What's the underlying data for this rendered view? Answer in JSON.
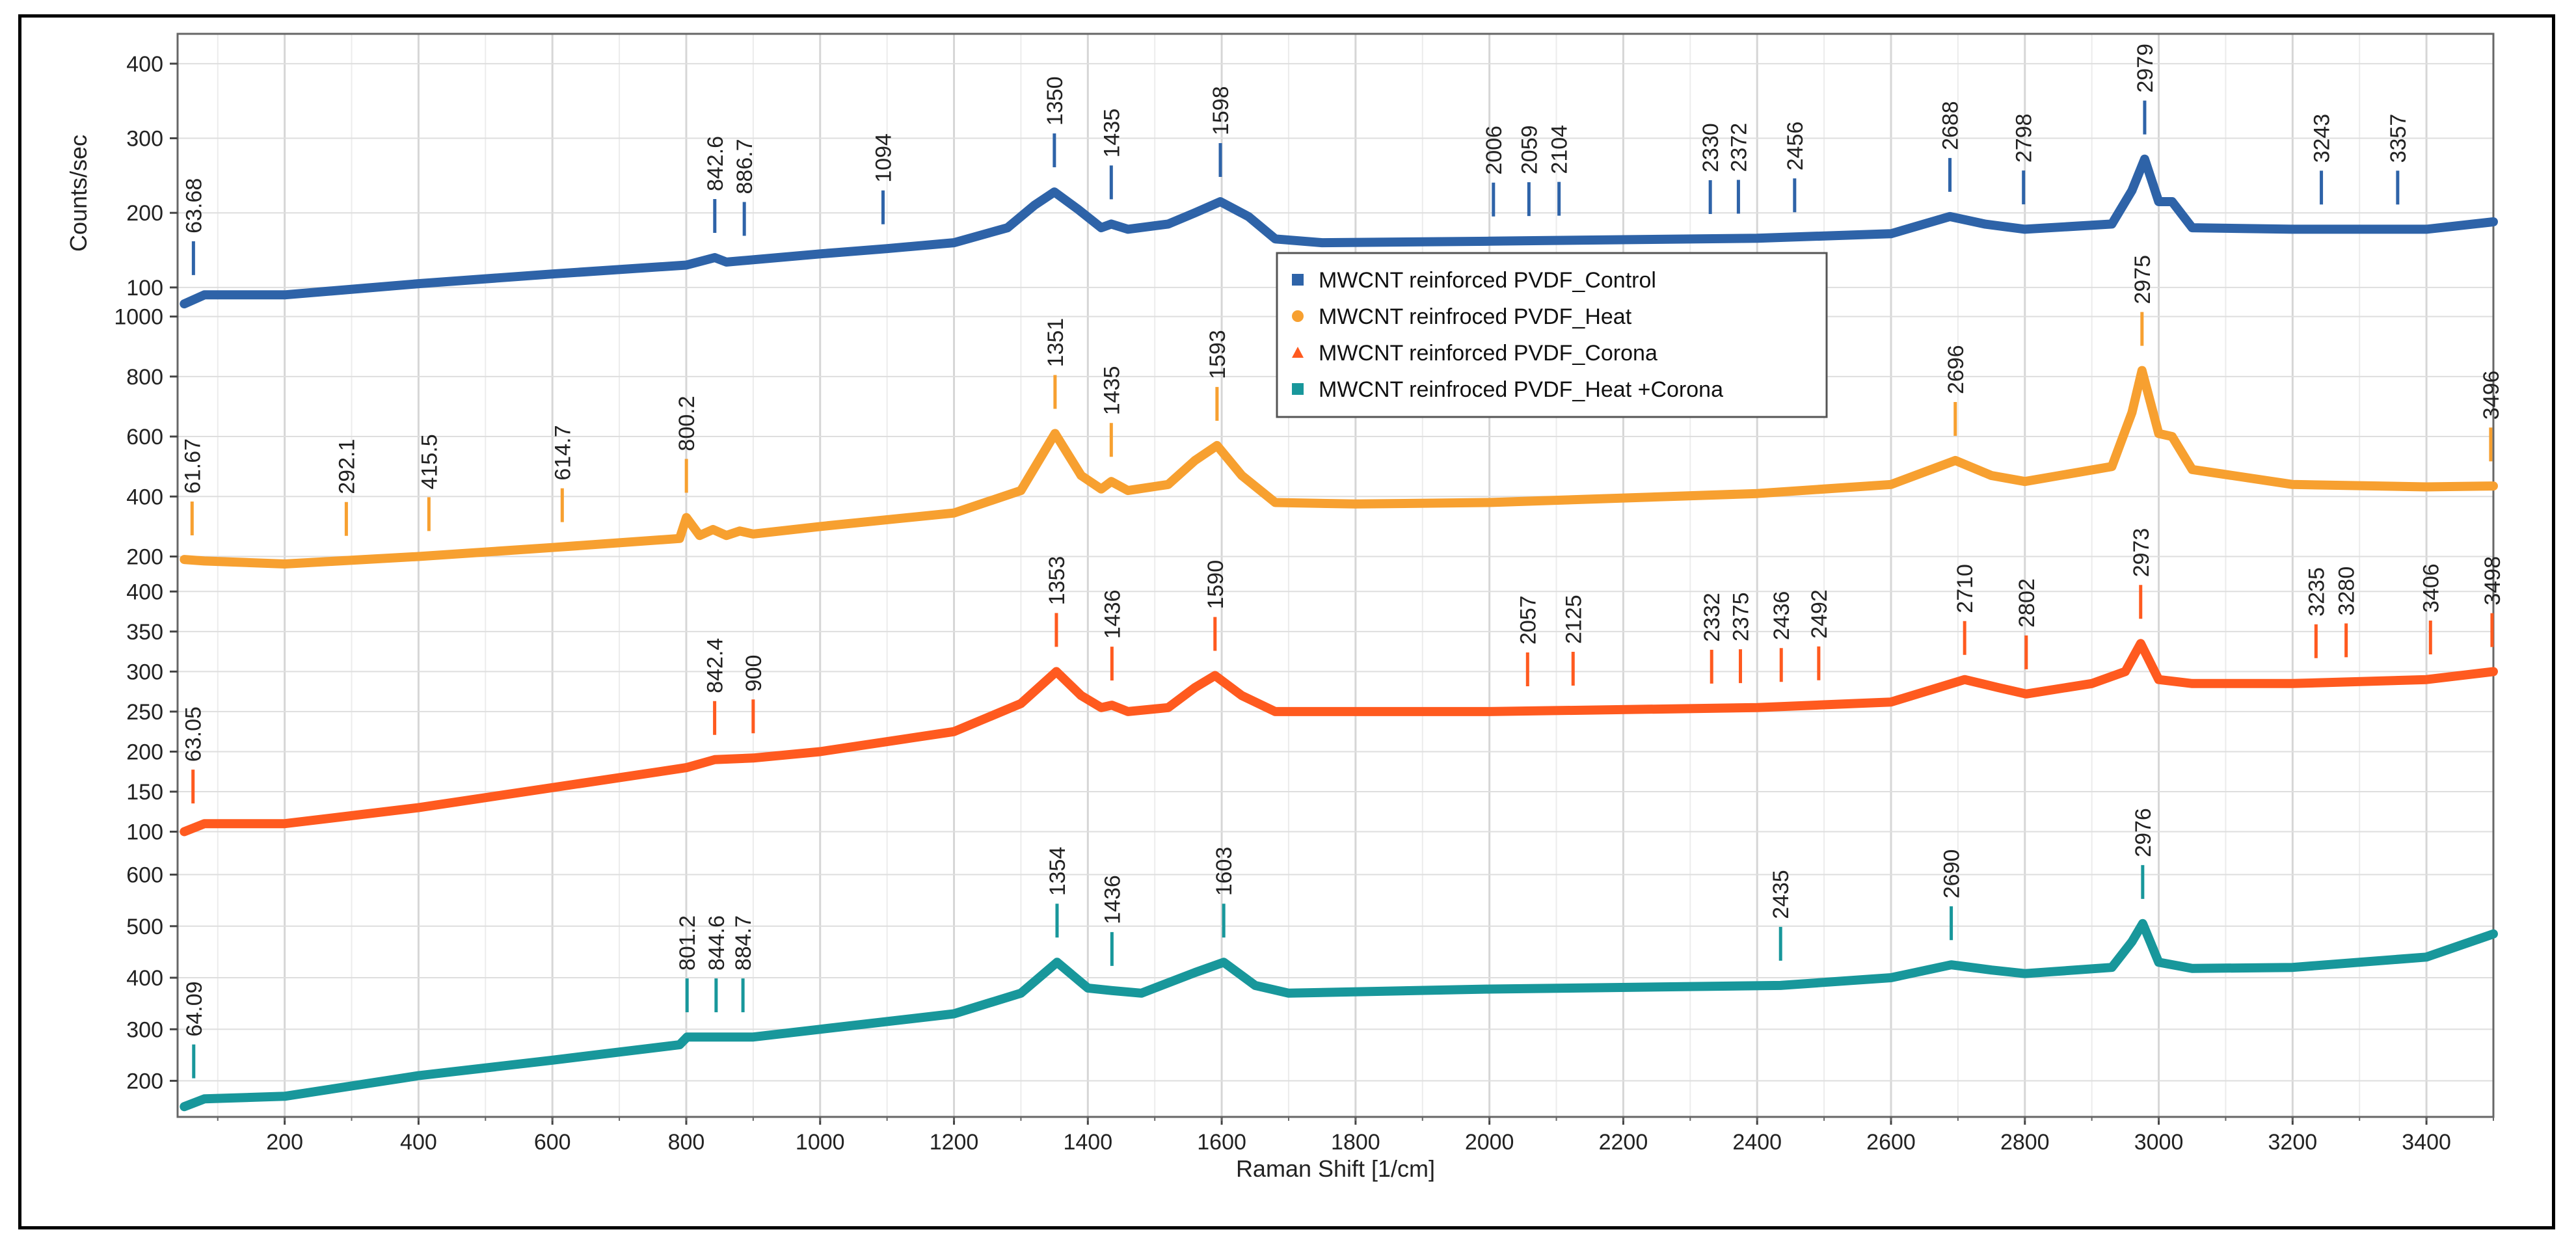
{
  "chart_data": {
    "type": "line",
    "title": "",
    "xlabel": "Raman Shift [1/cm]",
    "ylabel": "Counts/sec",
    "xlim": [
      40,
      3500
    ],
    "x_ticks": [
      200,
      400,
      600,
      800,
      1000,
      1200,
      1400,
      1600,
      1800,
      2000,
      2200,
      2400,
      2600,
      2800,
      3000,
      3200,
      3400
    ],
    "grid": true,
    "legend_position": "center-right",
    "panels": [
      {
        "series_name": "MWCNT reinforced PVDF_Control",
        "color": "#2e63a8",
        "marker": "square",
        "y_ticks": [
          100,
          200,
          300,
          400
        ],
        "ylim": [
          65,
          440
        ],
        "points": [
          [
            50,
            78
          ],
          [
            80,
            90
          ],
          [
            200,
            90
          ],
          [
            400,
            105
          ],
          [
            600,
            118
          ],
          [
            800,
            130
          ],
          [
            842.6,
            140
          ],
          [
            860,
            134
          ],
          [
            1000,
            145
          ],
          [
            1100,
            152
          ],
          [
            1200,
            160
          ],
          [
            1280,
            180
          ],
          [
            1320,
            210
          ],
          [
            1350,
            228
          ],
          [
            1385,
            205
          ],
          [
            1420,
            180
          ],
          [
            1435,
            185
          ],
          [
            1460,
            178
          ],
          [
            1520,
            185
          ],
          [
            1560,
            200
          ],
          [
            1598,
            215
          ],
          [
            1640,
            195
          ],
          [
            1680,
            165
          ],
          [
            1750,
            160
          ],
          [
            2000,
            162
          ],
          [
            2400,
            166
          ],
          [
            2600,
            172
          ],
          [
            2688,
            195
          ],
          [
            2740,
            185
          ],
          [
            2800,
            178
          ],
          [
            2930,
            185
          ],
          [
            2960,
            230
          ],
          [
            2979,
            272
          ],
          [
            3000,
            215
          ],
          [
            3020,
            215
          ],
          [
            3050,
            180
          ],
          [
            3200,
            178
          ],
          [
            3400,
            178
          ],
          [
            3500,
            188
          ]
        ],
        "peaks": [
          {
            "x": 63.68,
            "label": "63.68"
          },
          {
            "x": 842.6,
            "label": "842.6"
          },
          {
            "x": 886.7,
            "label": "886.7"
          },
          {
            "x": 1094,
            "label": "1094"
          },
          {
            "x": 1350,
            "label": "1350"
          },
          {
            "x": 1435,
            "label": "1435"
          },
          {
            "x": 1598,
            "label": "1598"
          },
          {
            "x": 2006,
            "label": "2006"
          },
          {
            "x": 2059,
            "label": "2059"
          },
          {
            "x": 2104,
            "label": "2104"
          },
          {
            "x": 2330,
            "label": "2330"
          },
          {
            "x": 2372,
            "label": "2372"
          },
          {
            "x": 2456,
            "label": "2456"
          },
          {
            "x": 2688,
            "label": "2688"
          },
          {
            "x": 2798,
            "label": "2798"
          },
          {
            "x": 2979,
            "label": "2979"
          },
          {
            "x": 3243,
            "label": "3243"
          },
          {
            "x": 3357,
            "label": "3357"
          }
        ]
      },
      {
        "series_name": "MWCNT reinfroced PVDF_Heat",
        "color": "#f7a030",
        "marker": "circle",
        "y_ticks": [
          200,
          400,
          600,
          800,
          1000
        ],
        "ylim": [
          110,
          1010
        ],
        "points": [
          [
            50,
            190
          ],
          [
            80,
            185
          ],
          [
            200,
            175
          ],
          [
            400,
            200
          ],
          [
            600,
            230
          ],
          [
            790,
            260
          ],
          [
            800.2,
            330
          ],
          [
            820,
            270
          ],
          [
            840,
            290
          ],
          [
            860,
            270
          ],
          [
            880,
            285
          ],
          [
            900,
            275
          ],
          [
            1000,
            300
          ],
          [
            1200,
            345
          ],
          [
            1300,
            420
          ],
          [
            1351,
            610
          ],
          [
            1390,
            470
          ],
          [
            1420,
            425
          ],
          [
            1435,
            450
          ],
          [
            1460,
            420
          ],
          [
            1520,
            440
          ],
          [
            1560,
            520
          ],
          [
            1593,
            570
          ],
          [
            1630,
            470
          ],
          [
            1680,
            380
          ],
          [
            1800,
            375
          ],
          [
            2000,
            380
          ],
          [
            2400,
            410
          ],
          [
            2600,
            440
          ],
          [
            2696,
            520
          ],
          [
            2750,
            470
          ],
          [
            2800,
            450
          ],
          [
            2930,
            500
          ],
          [
            2960,
            680
          ],
          [
            2975,
            820
          ],
          [
            3000,
            610
          ],
          [
            3020,
            600
          ],
          [
            3050,
            490
          ],
          [
            3200,
            440
          ],
          [
            3400,
            432
          ],
          [
            3500,
            435
          ]
        ],
        "peaks": [
          {
            "x": 61.67,
            "label": "61.67"
          },
          {
            "x": 292.1,
            "label": "292.1"
          },
          {
            "x": 415.5,
            "label": "415.5"
          },
          {
            "x": 614.7,
            "label": "614.7"
          },
          {
            "x": 800.2,
            "label": "800.2"
          },
          {
            "x": 1351,
            "label": "1351"
          },
          {
            "x": 1435,
            "label": "1435"
          },
          {
            "x": 1593,
            "label": "1593"
          },
          {
            "x": 2696,
            "label": "2696"
          },
          {
            "x": 2975,
            "label": "2975"
          },
          {
            "x": 3496,
            "label": "3496"
          }
        ]
      },
      {
        "series_name": "MWCNT reinforced PVDF_Corona",
        "color": "#ff5a1f",
        "marker": "triangle",
        "y_ticks": [
          100,
          150,
          200,
          250,
          300,
          350,
          400
        ],
        "ylim": [
          85,
          410
        ],
        "points": [
          [
            50,
            100
          ],
          [
            80,
            110
          ],
          [
            200,
            110
          ],
          [
            400,
            130
          ],
          [
            600,
            155
          ],
          [
            800,
            180
          ],
          [
            842.4,
            190
          ],
          [
            900,
            192
          ],
          [
            1000,
            200
          ],
          [
            1200,
            225
          ],
          [
            1300,
            260
          ],
          [
            1353,
            300
          ],
          [
            1390,
            270
          ],
          [
            1420,
            255
          ],
          [
            1436,
            258
          ],
          [
            1460,
            250
          ],
          [
            1520,
            255
          ],
          [
            1560,
            280
          ],
          [
            1590,
            295
          ],
          [
            1630,
            270
          ],
          [
            1680,
            250
          ],
          [
            2000,
            250
          ],
          [
            2400,
            255
          ],
          [
            2600,
            262
          ],
          [
            2710,
            290
          ],
          [
            2760,
            280
          ],
          [
            2802,
            272
          ],
          [
            2900,
            285
          ],
          [
            2950,
            300
          ],
          [
            2973,
            335
          ],
          [
            3000,
            290
          ],
          [
            3050,
            285
          ],
          [
            3200,
            285
          ],
          [
            3400,
            290
          ],
          [
            3500,
            300
          ]
        ],
        "peaks": [
          {
            "x": 63.05,
            "label": "63.05"
          },
          {
            "x": 842.4,
            "label": "842.4"
          },
          {
            "x": 900,
            "label": "900"
          },
          {
            "x": 1353,
            "label": "1353"
          },
          {
            "x": 1436,
            "label": "1436"
          },
          {
            "x": 1590,
            "label": "1590"
          },
          {
            "x": 2057,
            "label": "2057"
          },
          {
            "x": 2125,
            "label": "2125"
          },
          {
            "x": 2332,
            "label": "2332"
          },
          {
            "x": 2375,
            "label": "2375"
          },
          {
            "x": 2436,
            "label": "2436"
          },
          {
            "x": 2492,
            "label": "2492"
          },
          {
            "x": 2710,
            "label": "2710"
          },
          {
            "x": 2802,
            "label": "2802"
          },
          {
            "x": 2973,
            "label": "2973"
          },
          {
            "x": 3235,
            "label": "3235"
          },
          {
            "x": 3280,
            "label": "3280"
          },
          {
            "x": 3406,
            "label": "3406"
          },
          {
            "x": 3498,
            "label": "3498"
          }
        ]
      },
      {
        "series_name": "MWCNT reinfroced PVDF_Heat +Corona",
        "color": "#18979b",
        "marker": "square",
        "y_ticks": [
          200,
          300,
          400,
          500,
          600
        ],
        "ylim": [
          130,
          660
        ],
        "points": [
          [
            50,
            150
          ],
          [
            80,
            165
          ],
          [
            200,
            170
          ],
          [
            400,
            210
          ],
          [
            600,
            240
          ],
          [
            790,
            270
          ],
          [
            801.2,
            285
          ],
          [
            900,
            285
          ],
          [
            1000,
            300
          ],
          [
            1200,
            330
          ],
          [
            1300,
            370
          ],
          [
            1354,
            430
          ],
          [
            1400,
            380
          ],
          [
            1436,
            375
          ],
          [
            1480,
            370
          ],
          [
            1560,
            410
          ],
          [
            1603,
            430
          ],
          [
            1650,
            385
          ],
          [
            1700,
            370
          ],
          [
            2000,
            378
          ],
          [
            2435,
            385
          ],
          [
            2600,
            400
          ],
          [
            2690,
            425
          ],
          [
            2750,
            415
          ],
          [
            2800,
            408
          ],
          [
            2930,
            420
          ],
          [
            2960,
            470
          ],
          [
            2976,
            505
          ],
          [
            3000,
            430
          ],
          [
            3050,
            418
          ],
          [
            3200,
            420
          ],
          [
            3400,
            440
          ],
          [
            3500,
            485
          ]
        ],
        "peaks": [
          {
            "x": 64.09,
            "label": "64.09"
          },
          {
            "x": 801.2,
            "label": "801.2"
          },
          {
            "x": 844.6,
            "label": "844.6"
          },
          {
            "x": 884.7,
            "label": "884.7"
          },
          {
            "x": 1354,
            "label": "1354"
          },
          {
            "x": 1436,
            "label": "1436"
          },
          {
            "x": 1603,
            "label": "1603"
          },
          {
            "x": 2435,
            "label": "2435"
          },
          {
            "x": 2690,
            "label": "2690"
          },
          {
            "x": 2976,
            "label": "2976"
          }
        ]
      }
    ]
  }
}
